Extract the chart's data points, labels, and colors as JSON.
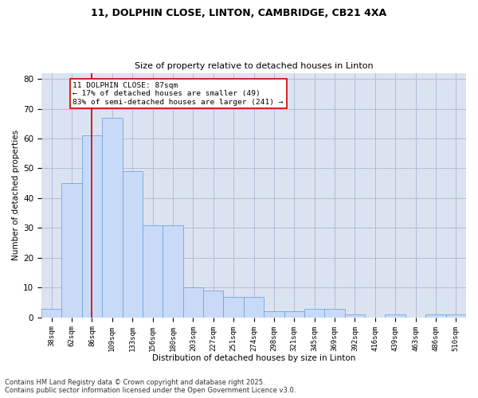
{
  "title_line1": "11, DOLPHIN CLOSE, LINTON, CAMBRIDGE, CB21 4XA",
  "title_line2": "Size of property relative to detached houses in Linton",
  "xlabel": "Distribution of detached houses by size in Linton",
  "ylabel": "Number of detached properties",
  "categories": [
    "38sqm",
    "62sqm",
    "86sqm",
    "109sqm",
    "133sqm",
    "156sqm",
    "180sqm",
    "203sqm",
    "227sqm",
    "251sqm",
    "274sqm",
    "298sqm",
    "321sqm",
    "345sqm",
    "369sqm",
    "392sqm",
    "416sqm",
    "439sqm",
    "463sqm",
    "486sqm",
    "510sqm"
  ],
  "values": [
    3,
    45,
    61,
    67,
    49,
    31,
    31,
    10,
    9,
    7,
    7,
    2,
    2,
    3,
    3,
    1,
    0,
    1,
    0,
    1,
    1
  ],
  "bar_color": "#c9daf8",
  "bar_edge_color": "#6fa8dc",
  "grid_color": "#b0bcd8",
  "background_color": "#dce3f0",
  "vline_x": 2,
  "vline_color": "#cc0000",
  "annotation_text": "11 DOLPHIN CLOSE: 87sqm\n← 17% of detached houses are smaller (49)\n83% of semi-detached houses are larger (241) →",
  "annotation_box_color": "#ffffff",
  "annotation_box_edge": "#cc0000",
  "footer_text": "Contains HM Land Registry data © Crown copyright and database right 2025.\nContains public sector information licensed under the Open Government Licence v3.0.",
  "ylim": [
    0,
    82
  ],
  "yticks": [
    0,
    10,
    20,
    30,
    40,
    50,
    60,
    70,
    80
  ]
}
